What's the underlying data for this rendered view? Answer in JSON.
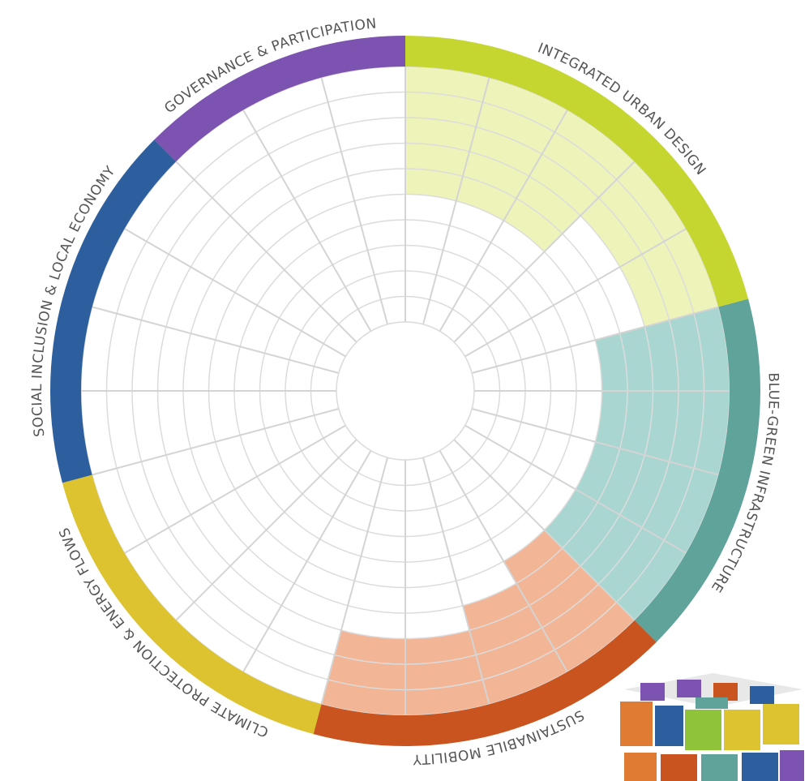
{
  "chart_data": {
    "type": "radial-bar",
    "rlim": [
      0,
      10
    ],
    "rticks": [
      0,
      1,
      2,
      3,
      4,
      5,
      6,
      7,
      8,
      9,
      10
    ],
    "series": [
      {
        "name": "INTEGRATED URBAN DESIGN",
        "color": "#c6d631",
        "fill": "#eef4b9",
        "values": [
          5,
          5,
          5,
          3,
          3
        ]
      },
      {
        "name": "BLUE-GREEN INFRASTRUCTURE",
        "color": "#5fa39b",
        "fill": "#a9d6d1",
        "values": [
          5,
          5,
          5,
          5
        ]
      },
      {
        "name": "SUSTAINABILE MOBILITY",
        "color": "#c9541f",
        "fill": "#f2b595",
        "values": [
          5,
          4,
          3,
          3
        ]
      },
      {
        "name": "CLIMATE PROTECTION & ENERGY FLOWS",
        "color": "#dcc32f",
        "fill": "#f6eeb0",
        "values": [
          0,
          0,
          0,
          0
        ]
      },
      {
        "name": "SOCIAL INCLUSION & LOCAL ECONOMY",
        "color": "#2d5f9f",
        "fill": "#b9cde6",
        "values": [
          0,
          0,
          0,
          0
        ]
      },
      {
        "name": "GOVERNANCE & PARTICIPATION",
        "color": "#7c53b1",
        "fill": "#d8c9ec",
        "values": [
          0,
          0,
          0
        ]
      }
    ]
  }
}
